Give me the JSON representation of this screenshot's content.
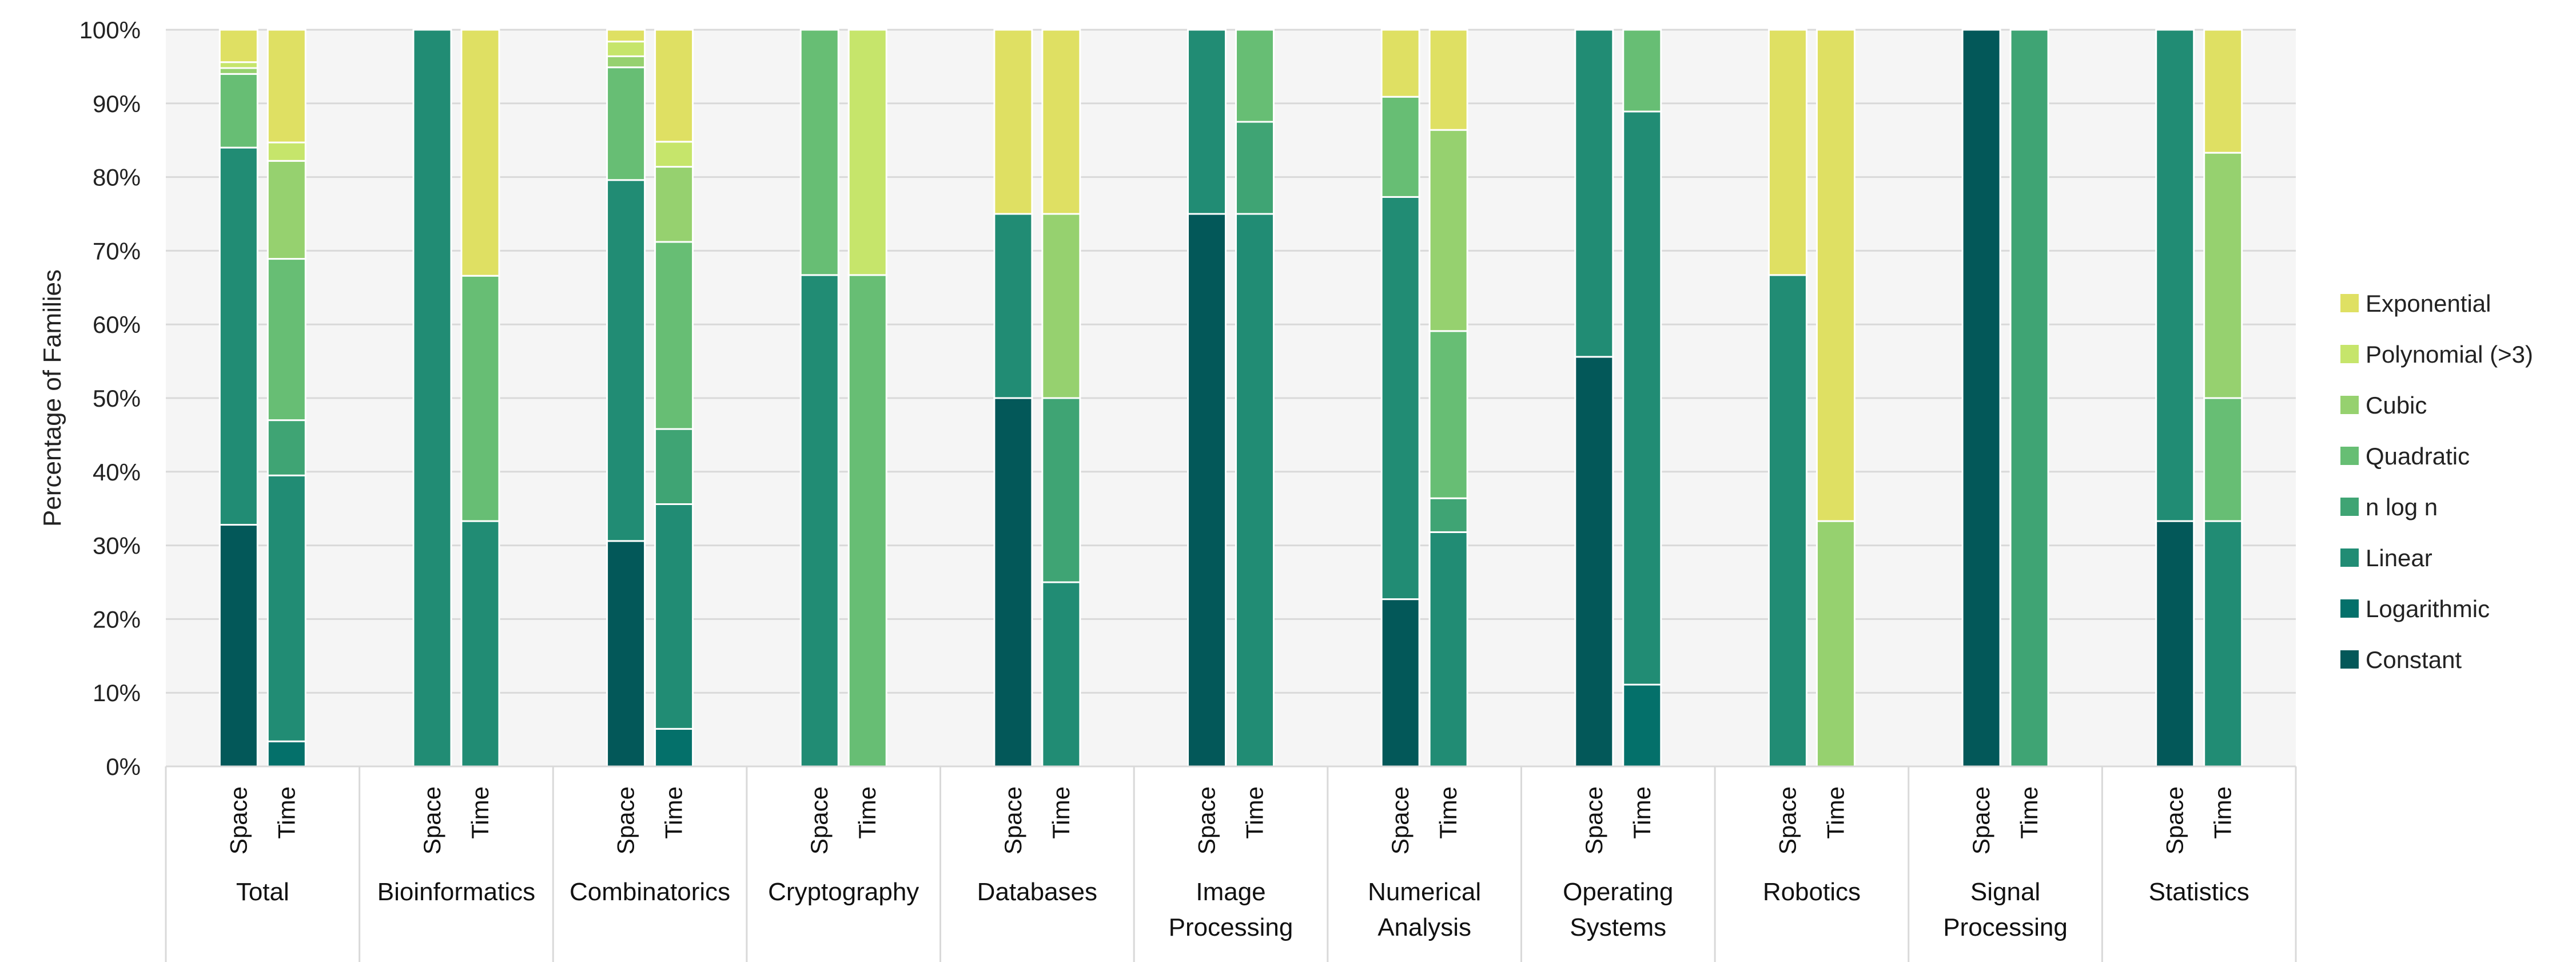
{
  "chart_data": {
    "type": "bar",
    "stacked": true,
    "percent": true,
    "ylabel": "Percentage of Families",
    "ylim": [
      0,
      100
    ],
    "yticks": [
      "0%",
      "10%",
      "20%",
      "30%",
      "40%",
      "50%",
      "60%",
      "70%",
      "80%",
      "90%",
      "100%"
    ],
    "grid": true,
    "legend_position": "right",
    "categories": [
      {
        "name": "Total",
        "lines": [
          "Total"
        ]
      },
      {
        "name": "Bioinformatics",
        "lines": [
          "Bioinformatics"
        ]
      },
      {
        "name": "Combinatorics",
        "lines": [
          "Combinatorics"
        ]
      },
      {
        "name": "Cryptography",
        "lines": [
          "Cryptography"
        ]
      },
      {
        "name": "Databases",
        "lines": [
          "Databases"
        ]
      },
      {
        "name": "Image Processing",
        "lines": [
          "Image",
          "Processing"
        ]
      },
      {
        "name": "Numerical Analysis",
        "lines": [
          "Numerical",
          "Analysis"
        ]
      },
      {
        "name": "Operating Systems",
        "lines": [
          "Operating",
          "Systems"
        ]
      },
      {
        "name": "Robotics",
        "lines": [
          "Robotics"
        ]
      },
      {
        "name": "Signal Processing",
        "lines": [
          "Signal",
          "Processing"
        ]
      },
      {
        "name": "Statistics",
        "lines": [
          "Statistics"
        ]
      }
    ],
    "subcategories": [
      "Space",
      "Time"
    ],
    "series_order_bottom_to_top": [
      "Constant",
      "Logarithmic",
      "Linear",
      "n log n",
      "Quadratic",
      "Cubic",
      "Polynomial (>3)",
      "Exponential"
    ],
    "legend_order": [
      "Exponential",
      "Polynomial (>3)",
      "Cubic",
      "Quadratic",
      "n log n",
      "Linear",
      "Logarithmic",
      "Constant"
    ],
    "colors": {
      "Constant": "#035859",
      "Logarithmic": "#04706a",
      "Linear": "#218c74",
      "n log n": "#3fa474",
      "Quadratic": "#67be74",
      "Cubic": "#96d16f",
      "Polynomial (>3)": "#c6e56b",
      "Exponential": "#dfe063"
    },
    "bars": [
      {
        "category": "Total",
        "sub": "Space",
        "values": {
          "Constant": 32.8,
          "Logarithmic": 0,
          "Linear": 51.2,
          "n log n": 0,
          "Quadratic": 10.0,
          "Cubic": 0.8,
          "Polynomial (>3)": 0.8,
          "Exponential": 4.4
        }
      },
      {
        "category": "Total",
        "sub": "Time",
        "values": {
          "Constant": 0,
          "Logarithmic": 3.4,
          "Linear": 36.1,
          "n log n": 7.5,
          "Quadratic": 21.9,
          "Cubic": 13.3,
          "Polynomial (>3)": 2.5,
          "Exponential": 15.3
        }
      },
      {
        "category": "Bioinformatics",
        "sub": "Space",
        "values": {
          "Constant": 0,
          "Logarithmic": 0,
          "Linear": 100,
          "n log n": 0,
          "Quadratic": 0,
          "Cubic": 0,
          "Polynomial (>3)": 0,
          "Exponential": 0
        }
      },
      {
        "category": "Bioinformatics",
        "sub": "Time",
        "values": {
          "Constant": 0,
          "Logarithmic": 0,
          "Linear": 33.3,
          "n log n": 0,
          "Quadratic": 33.3,
          "Cubic": 0,
          "Polynomial (>3)": 0,
          "Exponential": 33.4
        }
      },
      {
        "category": "Combinatorics",
        "sub": "Space",
        "values": {
          "Constant": 30.6,
          "Logarithmic": 0,
          "Linear": 49.0,
          "n log n": 0,
          "Quadratic": 15.3,
          "Cubic": 1.5,
          "Polynomial (>3)": 2.0,
          "Exponential": 1.6
        }
      },
      {
        "category": "Combinatorics",
        "sub": "Time",
        "values": {
          "Constant": 0,
          "Logarithmic": 5.1,
          "Linear": 30.5,
          "n log n": 10.2,
          "Quadratic": 25.4,
          "Cubic": 10.2,
          "Polynomial (>3)": 3.4,
          "Exponential": 15.2
        }
      },
      {
        "category": "Cryptography",
        "sub": "Space",
        "values": {
          "Constant": 0,
          "Logarithmic": 0,
          "Linear": 66.7,
          "n log n": 0,
          "Quadratic": 33.3,
          "Cubic": 0,
          "Polynomial (>3)": 0,
          "Exponential": 0
        }
      },
      {
        "category": "Cryptography",
        "sub": "Time",
        "values": {
          "Constant": 0,
          "Logarithmic": 0,
          "Linear": 0,
          "n log n": 0,
          "Quadratic": 66.7,
          "Cubic": 0,
          "Polynomial (>3)": 33.3,
          "Exponential": 0
        }
      },
      {
        "category": "Databases",
        "sub": "Space",
        "values": {
          "Constant": 50,
          "Logarithmic": 0,
          "Linear": 25,
          "n log n": 0,
          "Quadratic": 0,
          "Cubic": 0,
          "Polynomial (>3)": 0,
          "Exponential": 25
        }
      },
      {
        "category": "Databases",
        "sub": "Time",
        "values": {
          "Constant": 0,
          "Logarithmic": 0,
          "Linear": 25,
          "n log n": 25,
          "Quadratic": 0,
          "Cubic": 25,
          "Polynomial (>3)": 0,
          "Exponential": 25
        }
      },
      {
        "category": "Image Processing",
        "sub": "Space",
        "values": {
          "Constant": 75,
          "Logarithmic": 0,
          "Linear": 25,
          "n log n": 0,
          "Quadratic": 0,
          "Cubic": 0,
          "Polynomial (>3)": 0,
          "Exponential": 0
        }
      },
      {
        "category": "Image Processing",
        "sub": "Time",
        "values": {
          "Constant": 0,
          "Logarithmic": 0,
          "Linear": 75,
          "n log n": 12.5,
          "Quadratic": 12.5,
          "Cubic": 0,
          "Polynomial (>3)": 0,
          "Exponential": 0
        }
      },
      {
        "category": "Numerical Analysis",
        "sub": "Space",
        "values": {
          "Constant": 22.7,
          "Logarithmic": 0,
          "Linear": 54.6,
          "n log n": 0,
          "Quadratic": 13.6,
          "Cubic": 0,
          "Polynomial (>3)": 0,
          "Exponential": 9.1
        }
      },
      {
        "category": "Numerical Analysis",
        "sub": "Time",
        "values": {
          "Constant": 0,
          "Logarithmic": 0,
          "Linear": 31.8,
          "n log n": 4.6,
          "Quadratic": 22.7,
          "Cubic": 27.3,
          "Polynomial (>3)": 0,
          "Exponential": 13.6
        }
      },
      {
        "category": "Operating Systems",
        "sub": "Space",
        "values": {
          "Constant": 55.6,
          "Logarithmic": 0,
          "Linear": 44.4,
          "n log n": 0,
          "Quadratic": 0,
          "Cubic": 0,
          "Polynomial (>3)": 0,
          "Exponential": 0
        }
      },
      {
        "category": "Operating Systems",
        "sub": "Time",
        "values": {
          "Constant": 0,
          "Logarithmic": 11.1,
          "Linear": 77.8,
          "n log n": 0,
          "Quadratic": 11.1,
          "Cubic": 0,
          "Polynomial (>3)": 0,
          "Exponential": 0
        }
      },
      {
        "category": "Robotics",
        "sub": "Space",
        "values": {
          "Constant": 0,
          "Logarithmic": 0,
          "Linear": 66.7,
          "n log n": 0,
          "Quadratic": 0,
          "Cubic": 0,
          "Polynomial (>3)": 0,
          "Exponential": 33.3
        }
      },
      {
        "category": "Robotics",
        "sub": "Time",
        "values": {
          "Constant": 0,
          "Logarithmic": 0,
          "Linear": 0,
          "n log n": 0,
          "Quadratic": 0,
          "Cubic": 33.3,
          "Polynomial (>3)": 0,
          "Exponential": 66.7
        }
      },
      {
        "category": "Signal Processing",
        "sub": "Space",
        "values": {
          "Constant": 100,
          "Logarithmic": 0,
          "Linear": 0,
          "n log n": 0,
          "Quadratic": 0,
          "Cubic": 0,
          "Polynomial (>3)": 0,
          "Exponential": 0
        }
      },
      {
        "category": "Signal Processing",
        "sub": "Time",
        "values": {
          "Constant": 0,
          "Logarithmic": 0,
          "Linear": 0,
          "n log n": 100,
          "Quadratic": 0,
          "Cubic": 0,
          "Polynomial (>3)": 0,
          "Exponential": 0
        }
      },
      {
        "category": "Statistics",
        "sub": "Space",
        "values": {
          "Constant": 33.3,
          "Logarithmic": 0,
          "Linear": 66.7,
          "n log n": 0,
          "Quadratic": 0,
          "Cubic": 0,
          "Polynomial (>3)": 0,
          "Exponential": 0
        }
      },
      {
        "category": "Statistics",
        "sub": "Time",
        "values": {
          "Constant": 0,
          "Logarithmic": 0,
          "Linear": 33.3,
          "n log n": 0,
          "Quadratic": 16.7,
          "Cubic": 33.3,
          "Polynomial (>3)": 0,
          "Exponential": 16.7
        }
      }
    ]
  }
}
